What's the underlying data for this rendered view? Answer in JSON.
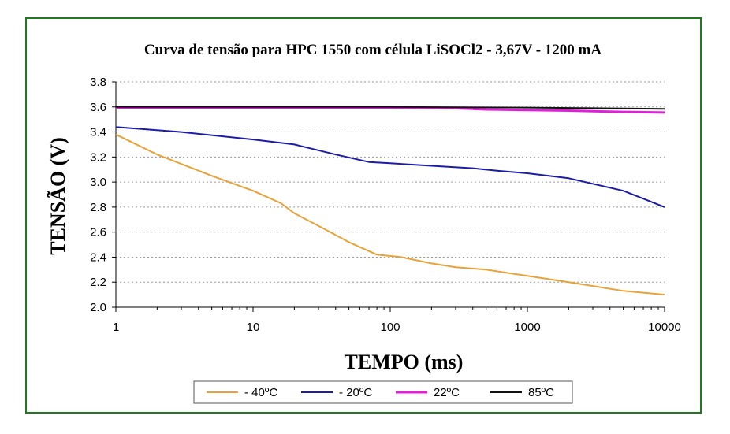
{
  "chart_data": {
    "type": "line",
    "title": "Curva de tensão para HPC 1550 com célula LiSOCl2 - 3,67V - 1200 mA",
    "xlabel": "TEMPO (ms)",
    "ylabel": "TENSÃO (V)",
    "xscale": "log",
    "xlim": [
      1,
      10000
    ],
    "ylim": [
      2.0,
      3.8
    ],
    "x_ticks": [
      1,
      10,
      100,
      1000,
      10000
    ],
    "x_tick_labels": [
      "1",
      "10",
      "100",
      "1000",
      "10000"
    ],
    "y_ticks": [
      2.0,
      2.2,
      2.4,
      2.6,
      2.8,
      3.0,
      3.2,
      3.4,
      3.6,
      3.8
    ],
    "y_tick_labels": [
      "2.0",
      "2.2",
      "2.4",
      "2.6",
      "2.8",
      "3.0",
      "3.2",
      "3.4",
      "3.6",
      "3.8"
    ],
    "grid": "horizontal dotted",
    "legend_position": "bottom",
    "series": [
      {
        "name": "- 40ºC",
        "color": "#e8a23a",
        "x": [
          1,
          2,
          5,
          10,
          16,
          20,
          30,
          50,
          80,
          120,
          200,
          300,
          500,
          1000,
          2000,
          5000,
          10000
        ],
        "y": [
          3.38,
          3.22,
          3.05,
          2.93,
          2.83,
          2.75,
          2.65,
          2.52,
          2.42,
          2.4,
          2.35,
          2.32,
          2.3,
          2.25,
          2.2,
          2.13,
          2.1
        ]
      },
      {
        "name": "- 20ºC",
        "color": "#1c1ca8",
        "x": [
          1,
          3,
          10,
          20,
          40,
          70,
          100,
          200,
          400,
          600,
          1000,
          2000,
          5000,
          10000
        ],
        "y": [
          3.44,
          3.4,
          3.34,
          3.3,
          3.22,
          3.16,
          3.15,
          3.13,
          3.11,
          3.09,
          3.07,
          3.03,
          2.93,
          2.8
        ]
      },
      {
        "name": "22ºC",
        "color": "#e020d8",
        "x": [
          1,
          10,
          100,
          300,
          500,
          1000,
          2000,
          5000,
          10000
        ],
        "y": [
          3.595,
          3.595,
          3.595,
          3.59,
          3.58,
          3.575,
          3.57,
          3.56,
          3.555
        ]
      },
      {
        "name": "85ºC",
        "color": "#111111",
        "x": [
          1,
          10,
          100,
          1000,
          3000,
          10000
        ],
        "y": [
          3.6,
          3.6,
          3.6,
          3.595,
          3.59,
          3.585
        ]
      }
    ]
  }
}
